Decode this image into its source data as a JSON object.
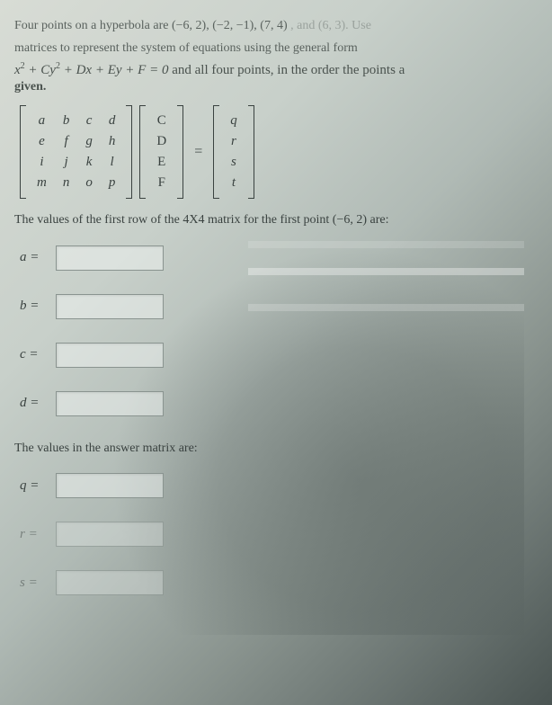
{
  "problem": {
    "line1_a": "Four points on a hyperbola are ",
    "points_visible": "(−6, 2), (−2, −1), (7,   4)",
    "line1_b": ", and (6, 3).  Use",
    "line2": "matrices to represent the system of equations using the general form",
    "equation": "x² + Cy² + Dx + Ey + F = 0",
    "line3": " and all four points, in the order the points a",
    "given": "given."
  },
  "matrices": {
    "m4x4": [
      [
        "a",
        "b",
        "c",
        "d"
      ],
      [
        "e",
        "f",
        "g",
        "h"
      ],
      [
        "i",
        "j",
        "k",
        "l"
      ],
      [
        "m",
        "n",
        "o",
        "p"
      ]
    ],
    "vars": [
      "C",
      "D",
      "E",
      "F"
    ],
    "rhs": [
      "q",
      "r",
      "s",
      "t"
    ],
    "eq": "="
  },
  "prompt1": "The values of the first row of the 4X4 matrix for the first point (−6, 2) are:",
  "inputs1": [
    {
      "label": "a ="
    },
    {
      "label": "b ="
    },
    {
      "label": "c ="
    },
    {
      "label": "d ="
    }
  ],
  "prompt2": "The values in the answer matrix are:",
  "inputs2": [
    {
      "label": "q =",
      "faded": false
    },
    {
      "label": "r =",
      "faded": true
    },
    {
      "label": "s =",
      "faded": true
    }
  ]
}
